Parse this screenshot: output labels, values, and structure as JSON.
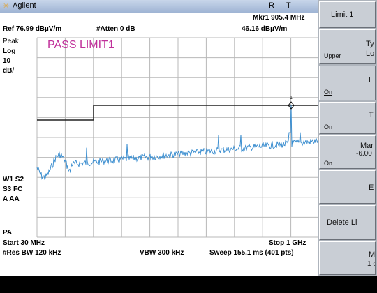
{
  "header": {
    "brand": "Agilent",
    "indicators": [
      "R",
      "T"
    ]
  },
  "status": {
    "ref": "Ref 76.99 dBµV/m",
    "atten": "#Atten 0 dB",
    "marker_freq": "Mkr1 905.4 MHz",
    "marker_level": "46.16 dBµV/m"
  },
  "left_annotations": [
    "Peak",
    "Log",
    "10",
    "dB/",
    "W1 S2",
    "S3 FC",
    "A AA",
    "PA"
  ],
  "message": "PASS LIMIT1",
  "marker_label": "1",
  "footer": {
    "start": "Start 30 MHz",
    "stop": "Stop 1 GHz",
    "res_bw": "#Res BW 120 kHz",
    "vbw": "VBW 300 kHz",
    "sweep": "Sweep 155.1 ms (401 pts)"
  },
  "softkeys": [
    {
      "label": "Limit 1"
    },
    {
      "label": "Ty",
      "left": "Upper",
      "right": "Lo"
    },
    {
      "label": "L",
      "left": "On"
    },
    {
      "label": "T",
      "left": "On"
    },
    {
      "label": "Mar",
      "sub": "-6.00",
      "left": "On"
    },
    {
      "label": "E"
    },
    {
      "label": "Delete Li"
    },
    {
      "label": "M",
      "sub": "1 o"
    }
  ]
}
